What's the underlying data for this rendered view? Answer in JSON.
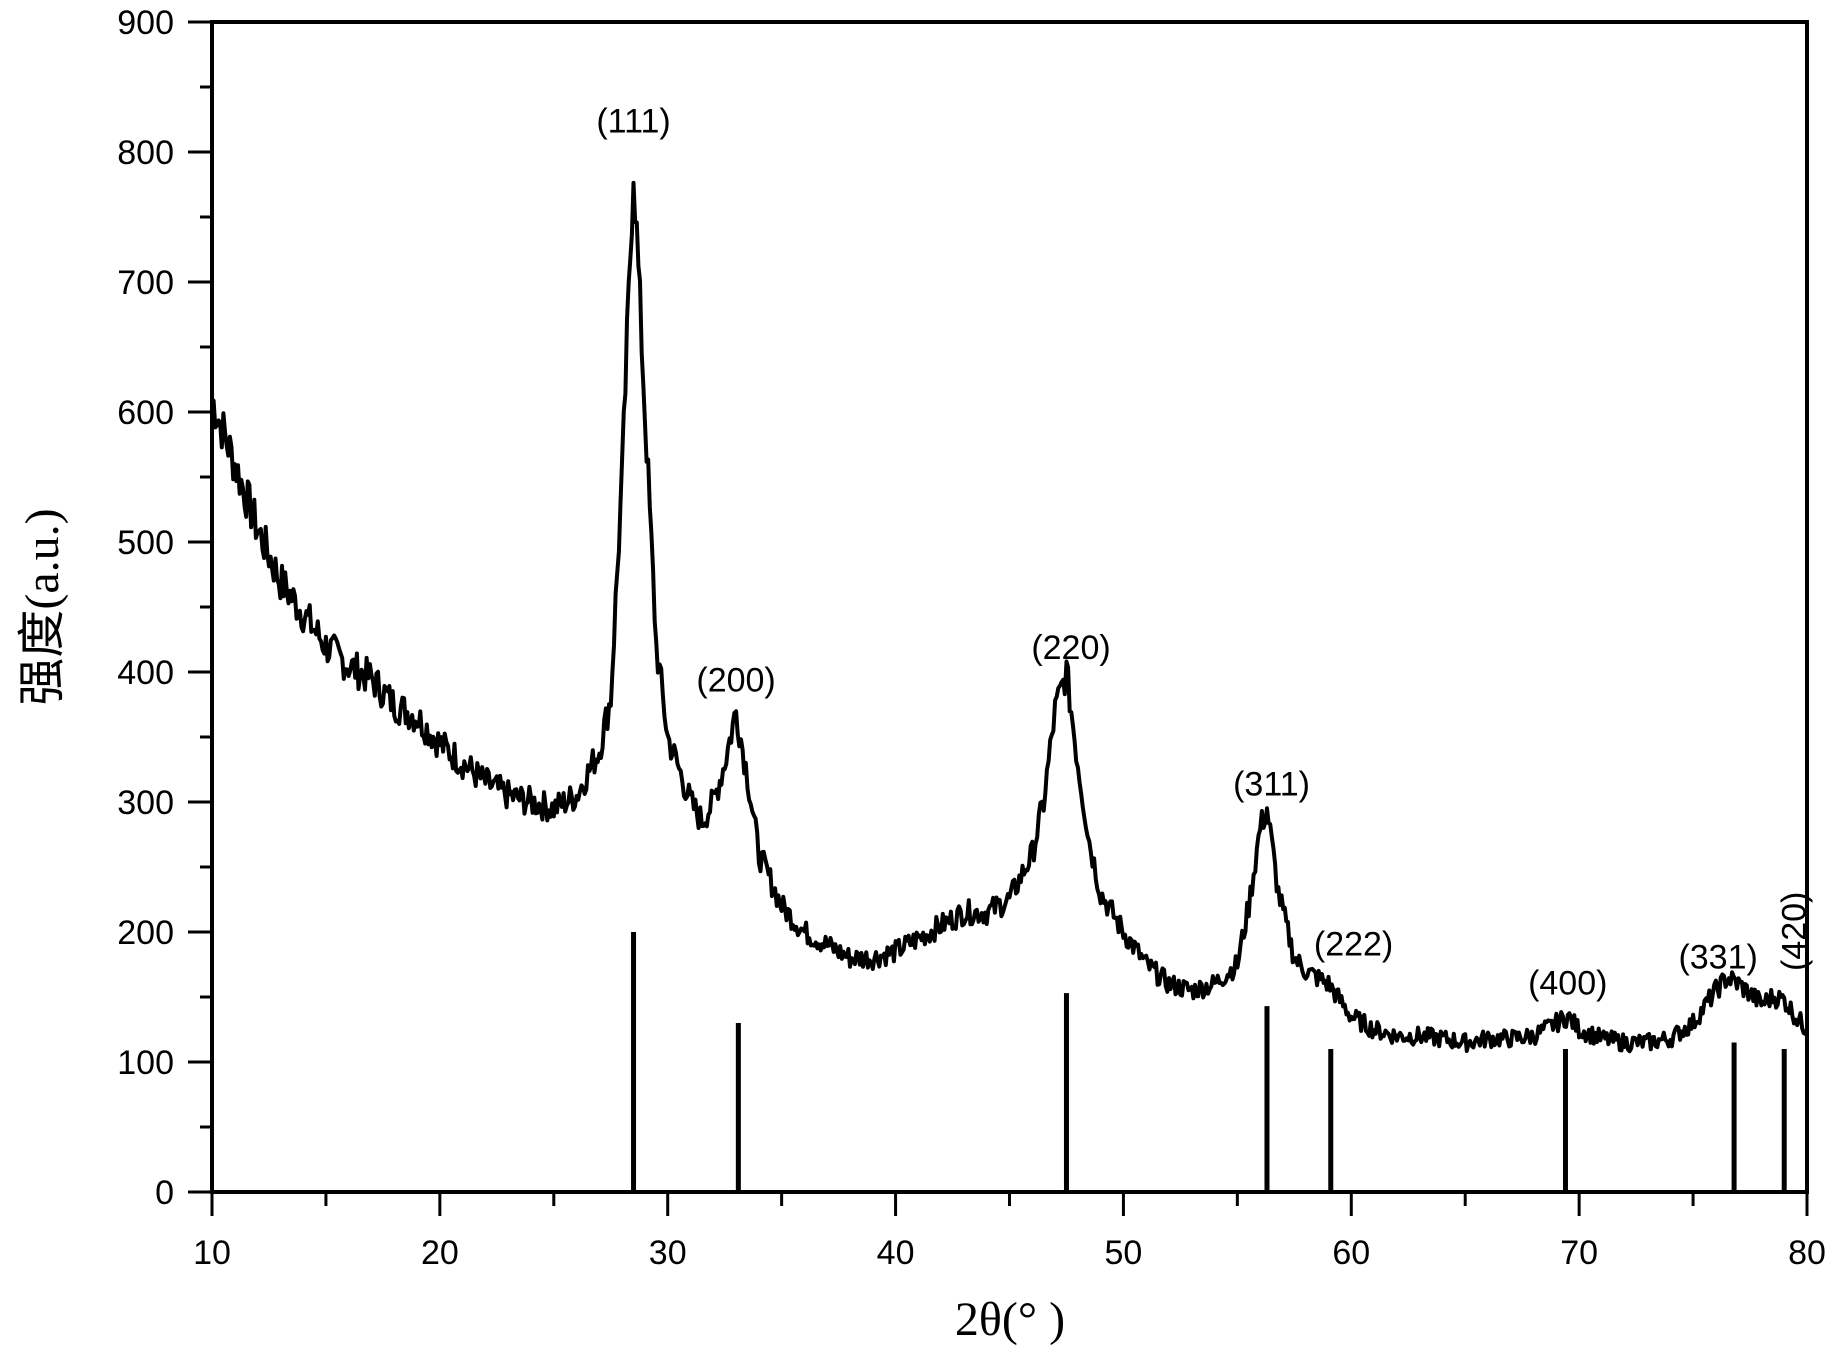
{
  "chart_data": {
    "type": "line",
    "title": "",
    "xlabel": "2θ(°  )",
    "ylabel": "强度(a.u.)",
    "xlim": [
      10,
      80
    ],
    "ylim": [
      0,
      900
    ],
    "xticks": [
      10,
      20,
      30,
      40,
      50,
      60,
      70,
      80
    ],
    "yticks": [
      0,
      100,
      200,
      300,
      400,
      500,
      600,
      700,
      800,
      900
    ],
    "grid": false,
    "series": [
      {
        "x": [
          10,
          11,
          12,
          13,
          14,
          15,
          16,
          17,
          18,
          19,
          20,
          21,
          22,
          23,
          24,
          25,
          26,
          27,
          27.5,
          28,
          28.5,
          29,
          29.5,
          30,
          31,
          31.5,
          32,
          32.5,
          33,
          33.5,
          34,
          35,
          36,
          37,
          38,
          39,
          40,
          41,
          42,
          43,
          44,
          45,
          46,
          46.5,
          47,
          47.5,
          48,
          48.5,
          49,
          50,
          51,
          52,
          53,
          54,
          55,
          55.5,
          56,
          56.3,
          56.8,
          57.5,
          58,
          59,
          60,
          61,
          62,
          63,
          64,
          65,
          66,
          67,
          68,
          69,
          69.5,
          70,
          71,
          72,
          73,
          74,
          75,
          76,
          76.5,
          77,
          78,
          78.5,
          79,
          79.5,
          80
        ],
        "y": [
          610,
          560,
          510,
          470,
          445,
          420,
          405,
          395,
          375,
          365,
          345,
          330,
          315,
          305,
          300,
          295,
          305,
          340,
          380,
          550,
          790,
          600,
          420,
          350,
          300,
          285,
          300,
          330,
          370,
          320,
          260,
          220,
          200,
          190,
          180,
          180,
          185,
          195,
          205,
          215,
          215,
          225,
          260,
          300,
          370,
          400,
          330,
          270,
          230,
          200,
          175,
          160,
          155,
          160,
          175,
          220,
          280,
          295,
          230,
          180,
          170,
          160,
          135,
          125,
          120,
          120,
          118,
          115,
          118,
          118,
          120,
          130,
          135,
          125,
          118,
          115,
          115,
          118,
          130,
          155,
          165,
          160,
          145,
          150,
          148,
          135,
          125
        ]
      }
    ],
    "reference_lines": [
      {
        "x": 28.5,
        "y": 200
      },
      {
        "x": 33.1,
        "y": 130
      },
      {
        "x": 47.5,
        "y": 153
      },
      {
        "x": 56.3,
        "y": 143
      },
      {
        "x": 59.1,
        "y": 110
      },
      {
        "x": 69.4,
        "y": 110
      },
      {
        "x": 76.8,
        "y": 115
      },
      {
        "x": 79.0,
        "y": 110
      }
    ],
    "annotations": [
      {
        "text": "(111)",
        "x": 28.5,
        "y": 815,
        "rotate": false
      },
      {
        "text": "(200)",
        "x": 33,
        "y": 385,
        "rotate": false
      },
      {
        "text": "(220)",
        "x": 47.7,
        "y": 410,
        "rotate": false
      },
      {
        "text": "(311)",
        "x": 56.5,
        "y": 305,
        "rotate": false
      },
      {
        "text": "(222)",
        "x": 60.1,
        "y": 182,
        "rotate": false
      },
      {
        "text": "(400)",
        "x": 69.5,
        "y": 152,
        "rotate": false
      },
      {
        "text": "(331)",
        "x": 76.1,
        "y": 172,
        "rotate": false
      },
      {
        "text": "(420)",
        "x": 79.4,
        "y": 170,
        "rotate": true
      }
    ]
  }
}
